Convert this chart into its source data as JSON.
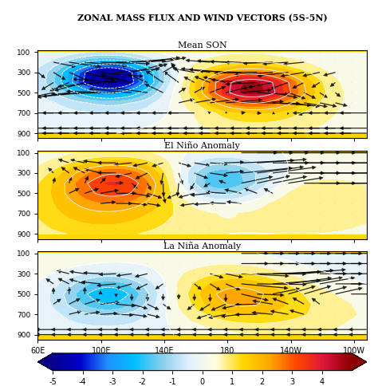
{
  "title": "ZONAL MASS FLUX AND WIND VECTORS (5S-5N)",
  "panels": [
    {
      "label": "Mean SON"
    },
    {
      "label": "El Niño Anomaly"
    },
    {
      "label": "La Niña Anomaly"
    }
  ],
  "xlabel_ticks": [
    "60E",
    "100E",
    "140E",
    "180",
    "140W",
    "100W"
  ],
  "xlabel_tick_positions": [
    60,
    100,
    140,
    180,
    220,
    260
  ],
  "ylabel_ticks": [
    100,
    300,
    500,
    700,
    900
  ],
  "colorbar_levels": [
    -5,
    -4,
    -3,
    -2,
    -1,
    0,
    1,
    2,
    3,
    4
  ],
  "colorbar_colors": [
    "#00008B",
    "#0000CD",
    "#1E90FF",
    "#00BFFF",
    "#87CEEB",
    "#FFFACD",
    "#FFD700",
    "#FF8C00",
    "#FF4500",
    "#DC143C",
    "#8B0000"
  ],
  "vmin": -5,
  "vmax": 5,
  "background_color": "#FFD700",
  "figsize": [
    4.74,
    4.84
  ],
  "dpi": 100
}
